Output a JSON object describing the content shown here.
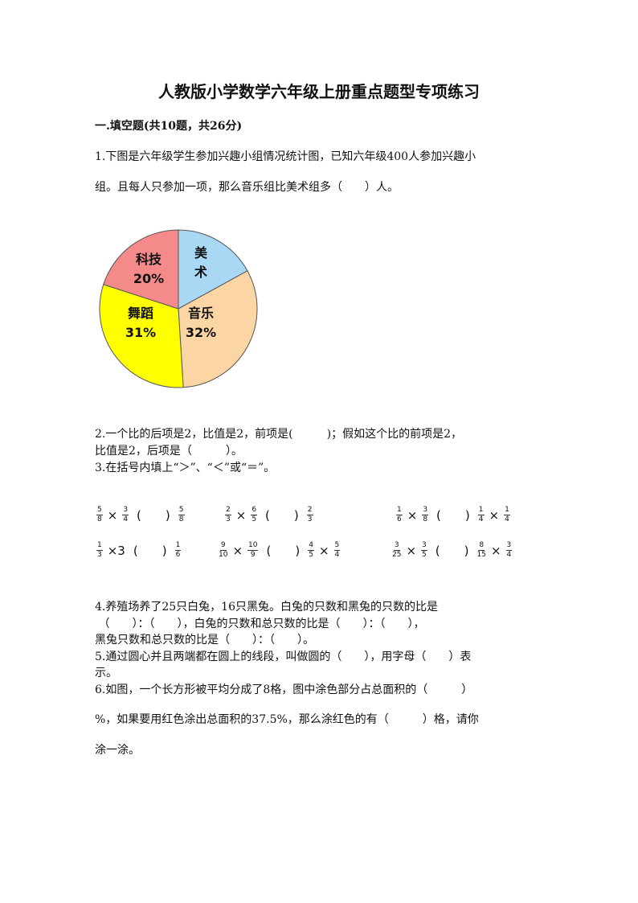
{
  "title": "人教版小学数学六年级上册重点题型专项练习",
  "section": "一.填空题(共10题，共26分)",
  "q1": [
    "1.下图是六年级学生参加兴趣小组情况统计图，已知六年级400人参加兴趣小",
    "组。且每人只参加一项，那么音乐组比美术组多（　　）人。"
  ],
  "chart_data": {
    "type": "pie",
    "slices": [
      {
        "label": "美术",
        "percent_label": "",
        "value": 17,
        "color": "#a9d8f5"
      },
      {
        "label": "音乐",
        "percent_label": "32%",
        "value": 32,
        "color": "#fcd5a4"
      },
      {
        "label": "舞蹈",
        "percent_label": "31%",
        "value": 31,
        "color": "#ffff00"
      },
      {
        "label": "科技",
        "percent_label": "20%",
        "value": 20,
        "color": "#f58a8a"
      }
    ]
  },
  "q2": [
    "2.一个比的后项是2，比值是2，前项是(　　　)；假如这个比的前项是2，",
    "比值是2，后项是（　　　）。"
  ],
  "q3": "3.在括号内填上“＞”、“＜”或“＝”。",
  "q3_items": [
    [
      {
        "n": "5",
        "d": "8"
      },
      "×",
      {
        "n": "3",
        "d": "4"
      },
      "(  )",
      {
        "n": "5",
        "d": "8"
      }
    ],
    [
      {
        "n": "2",
        "d": "3"
      },
      "×",
      {
        "n": "6",
        "d": "5"
      },
      "(  )",
      {
        "n": "2",
        "d": "3"
      }
    ],
    [
      {
        "n": "1",
        "d": "6"
      },
      "×",
      {
        "n": "3",
        "d": "8"
      },
      "(  )",
      {
        "n": "1",
        "d": "4"
      },
      "×",
      {
        "n": "1",
        "d": "4"
      }
    ],
    [
      {
        "n": "1",
        "d": "3"
      },
      "×3",
      "(  )",
      {
        "n": "1",
        "d": "6"
      }
    ],
    [
      {
        "n": "9",
        "d": "10"
      },
      "×",
      {
        "n": "10",
        "d": "9"
      },
      "(  )",
      {
        "n": "4",
        "d": "5"
      },
      "×",
      {
        "n": "5",
        "d": "4"
      }
    ],
    [
      {
        "n": "3",
        "d": "25"
      },
      "×",
      {
        "n": "3",
        "d": "5"
      },
      "(  )",
      {
        "n": "8",
        "d": "15"
      },
      "×",
      {
        "n": "3",
        "d": "4"
      }
    ]
  ],
  "q4": [
    "4.养殖场养了25只白兔，16只黑兔。白兔的只数和黑兔的只数的比是",
    " （　　）：（　　），白兔的只数和总只数的比是（　　）：（　　），",
    "黑兔只数和总只数的比是（　　）：（　　）。"
  ],
  "q5": [
    "5.通过圆心并且两端都在圆上的线段，叫做圆的（　　），用字母（　　）表",
    "示。"
  ],
  "q6": [
    "6.如图，一个长方形被平均分成了8格，图中涂色部分占总面积的（　　　）",
    "%，如果要用红色涂出总面积的37.5%，那么涂红色的有（　　　）格，请你",
    "涂一涂。"
  ]
}
